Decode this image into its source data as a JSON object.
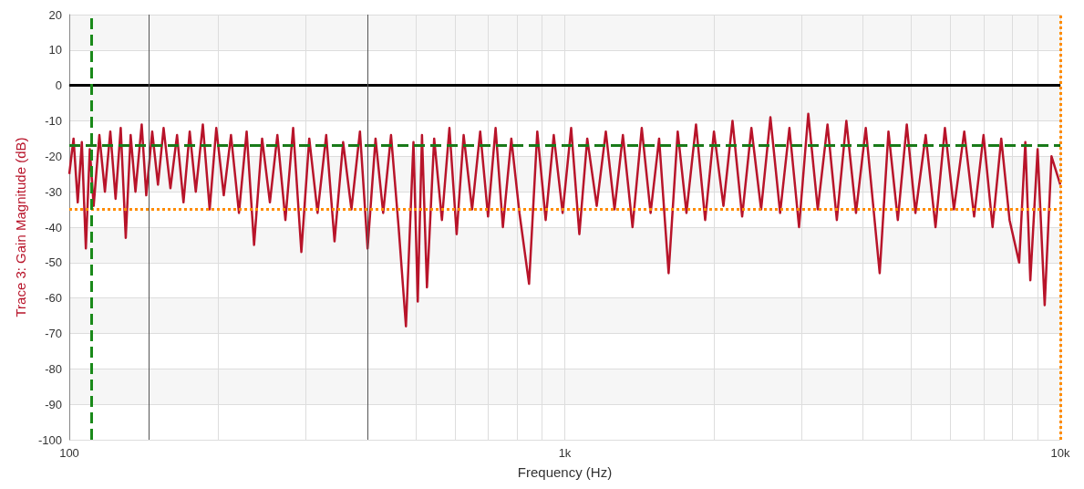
{
  "chart_data": {
    "type": "line",
    "xlabel": "Frequency (Hz)",
    "ylabel": "Trace 3: Gain Magnitude (dB)",
    "log": "x",
    "grid": true,
    "marker": "none",
    "xlim": [
      100,
      10000
    ],
    "xticks": [
      {
        "value": 100,
        "label": "100"
      },
      {
        "value": 1000,
        "label": "1k"
      },
      {
        "value": 10000,
        "label": "10k"
      }
    ],
    "ylim": [
      -100,
      20
    ],
    "yticks": [
      -100,
      -90,
      -80,
      -70,
      -60,
      -50,
      -40,
      -30,
      -20,
      -10,
      0,
      10,
      20
    ],
    "series": [
      {
        "color": "#b8142a",
        "x": [
          100,
          102,
          104,
          106,
          108,
          110,
          112,
          115,
          118,
          121,
          124,
          127,
          130,
          133,
          136,
          140,
          143,
          147,
          151,
          155,
          160,
          165,
          170,
          175,
          180,
          186,
          192,
          198,
          205,
          212,
          220,
          228,
          236,
          245,
          254,
          263,
          273,
          283,
          294,
          305,
          317,
          330,
          343,
          357,
          371,
          386,
          400,
          415,
          430,
          446,
          462,
          478,
          495,
          505,
          515,
          527,
          545,
          565,
          585,
          605,
          625,
          650,
          675,
          700,
          725,
          750,
          780,
          810,
          847,
          880,
          915,
          950,
          990,
          1030,
          1070,
          1110,
          1160,
          1210,
          1260,
          1310,
          1370,
          1430,
          1490,
          1550,
          1620,
          1690,
          1760,
          1840,
          1920,
          2000,
          2090,
          2180,
          2280,
          2380,
          2490,
          2600,
          2720,
          2840,
          2970,
          3100,
          3240,
          3390,
          3540,
          3700,
          3870,
          4050,
          4320,
          4500,
          4700,
          4900,
          5100,
          5350,
          5600,
          5850,
          6100,
          6400,
          6700,
          7000,
          7300,
          7600,
          7900,
          8260,
          8500,
          8700,
          9000,
          9300,
          9600,
          10000
        ],
        "values": [
          -25,
          -15,
          -33,
          -16,
          -46,
          -18,
          -34,
          -14,
          -30,
          -13,
          -32,
          -12,
          -43,
          -14,
          -30,
          -11,
          -31,
          -13,
          -28,
          -12,
          -29,
          -14,
          -33,
          -13,
          -30,
          -11,
          -35,
          -12,
          -31,
          -14,
          -36,
          -13,
          -45,
          -15,
          -33,
          -14,
          -38,
          -12,
          -47,
          -15,
          -36,
          -14,
          -44,
          -16,
          -35,
          -13,
          -46,
          -15,
          -36,
          -14,
          -40,
          -68,
          -16,
          -61,
          -14,
          -57,
          -15,
          -38,
          -12,
          -42,
          -14,
          -35,
          -13,
          -37,
          -12,
          -40,
          -15,
          -36,
          -56,
          -13,
          -38,
          -14,
          -36,
          -12,
          -42,
          -15,
          -34,
          -13,
          -35,
          -14,
          -40,
          -12,
          -36,
          -15,
          -53,
          -13,
          -36,
          -11,
          -38,
          -13,
          -34,
          -10,
          -37,
          -12,
          -35,
          -9,
          -36,
          -12,
          -40,
          -8,
          -35,
          -11,
          -38,
          -10,
          -36,
          -12,
          -53,
          -13,
          -38,
          -11,
          -36,
          -14,
          -40,
          -12,
          -35,
          -13,
          -37,
          -14,
          -40,
          -15,
          -38,
          -50,
          -16,
          -55,
          -18,
          -62,
          -20,
          -28
        ]
      }
    ],
    "ref_lines": [
      {
        "axis": "y",
        "value": 0,
        "color": "#000000",
        "line_style": "solid"
      },
      {
        "axis": "y",
        "value": -16.8,
        "color": "#1a7a1a",
        "line_style": "dashed"
      },
      {
        "axis": "y",
        "value": -34.8,
        "color": "#ff8c00",
        "line_style": "dotted"
      },
      {
        "axis": "x",
        "value": 111,
        "color": "#1a8a1a",
        "line_style": "dashed"
      },
      {
        "axis": "x",
        "value": 145,
        "color": "#555555",
        "line_style": "solid"
      },
      {
        "axis": "x",
        "value": 400,
        "color": "#555555",
        "line_style": "solid"
      },
      {
        "axis": "x",
        "value": 10000,
        "color": "#ff8c00",
        "line_style": "dotted"
      }
    ]
  }
}
